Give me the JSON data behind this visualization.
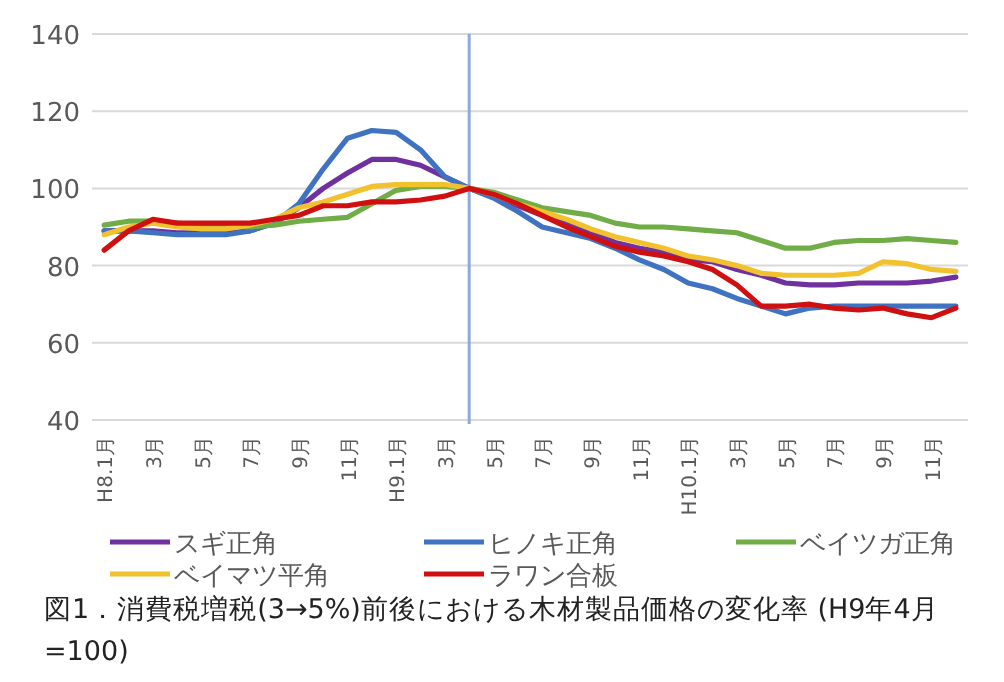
{
  "chart_data": {
    "type": "line",
    "categories": [
      "H8.1月",
      null,
      "3月",
      null,
      "5月",
      null,
      "7月",
      null,
      "9月",
      null,
      "11月",
      null,
      "H9.1月",
      null,
      "3月",
      null,
      "5月",
      null,
      "7月",
      null,
      "9月",
      null,
      "11月",
      null,
      "H10.1月",
      null,
      "3月",
      null,
      "5月",
      null,
      "7月",
      null,
      "9月",
      null,
      "11月",
      null
    ],
    "series": [
      {
        "name": "スギ正角",
        "color": "#7030a0",
        "values": [
          89,
          89,
          89,
          88.5,
          88.5,
          88.5,
          89,
          91,
          95,
          100,
          104,
          107.5,
          107.5,
          106,
          103,
          100,
          98,
          95.5,
          93,
          91,
          88.5,
          86,
          84.5,
          83.5,
          81.5,
          81,
          79,
          77.5,
          75.5,
          75,
          75,
          75.5,
          75.5,
          75.5,
          76,
          77
        ]
      },
      {
        "name": "ヒノキ正角",
        "color": "#3f72c0",
        "values": [
          89,
          89,
          88.5,
          88,
          88,
          88,
          89,
          91,
          96,
          105,
          113,
          115,
          114.5,
          110,
          103,
          100,
          97.5,
          94,
          90,
          88.5,
          87,
          84.5,
          81.5,
          79,
          75.5,
          74,
          71.5,
          69.5,
          67.5,
          69,
          69.5,
          69.5,
          69.5,
          69.5,
          69.5,
          69.5
        ]
      },
      {
        "name": "ベイツガ正角",
        "color": "#70ad47",
        "values": [
          90.5,
          91.5,
          91.5,
          91,
          90.5,
          90.5,
          90,
          90.5,
          91.5,
          92,
          92.5,
          96,
          99.5,
          100.5,
          100.5,
          100,
          99,
          97,
          95,
          94,
          93,
          91,
          90,
          90,
          89.5,
          89,
          88.5,
          86.5,
          84.5,
          84.5,
          86,
          86.5,
          86.5,
          87,
          86.5,
          86
        ]
      },
      {
        "name": "ベイマツ平角",
        "color": "#f2c12e",
        "values": [
          88,
          90,
          91,
          90,
          89.5,
          89.5,
          90.5,
          92,
          95,
          96.5,
          98.5,
          100.5,
          101,
          101,
          101,
          100,
          98.5,
          96,
          94,
          92,
          89.5,
          87.5,
          86,
          84.5,
          82.5,
          81.5,
          80,
          78,
          77.5,
          77.5,
          77.5,
          78,
          81,
          80.5,
          79,
          78.5
        ]
      },
      {
        "name": "ラワン合板",
        "color": "#d01010",
        "values": [
          84,
          89,
          92,
          91,
          91,
          91,
          91,
          92,
          93,
          95.5,
          95.5,
          96.5,
          96.5,
          97,
          98,
          100,
          98.5,
          96,
          93,
          90,
          87.5,
          85,
          83.5,
          82.5,
          81,
          79,
          75,
          69.5,
          69.5,
          70,
          69,
          68.5,
          69,
          67.5,
          66.5,
          69
        ]
      }
    ],
    "ylim": [
      40,
      140
    ],
    "yticks": [
      40,
      60,
      80,
      100,
      120,
      140
    ],
    "grid": "y",
    "legend": "bottom",
    "annotations": [
      "図1．消費税増税(3→5%)前後における木材製品価格の変化率 (H9年4月=100)"
    ]
  }
}
